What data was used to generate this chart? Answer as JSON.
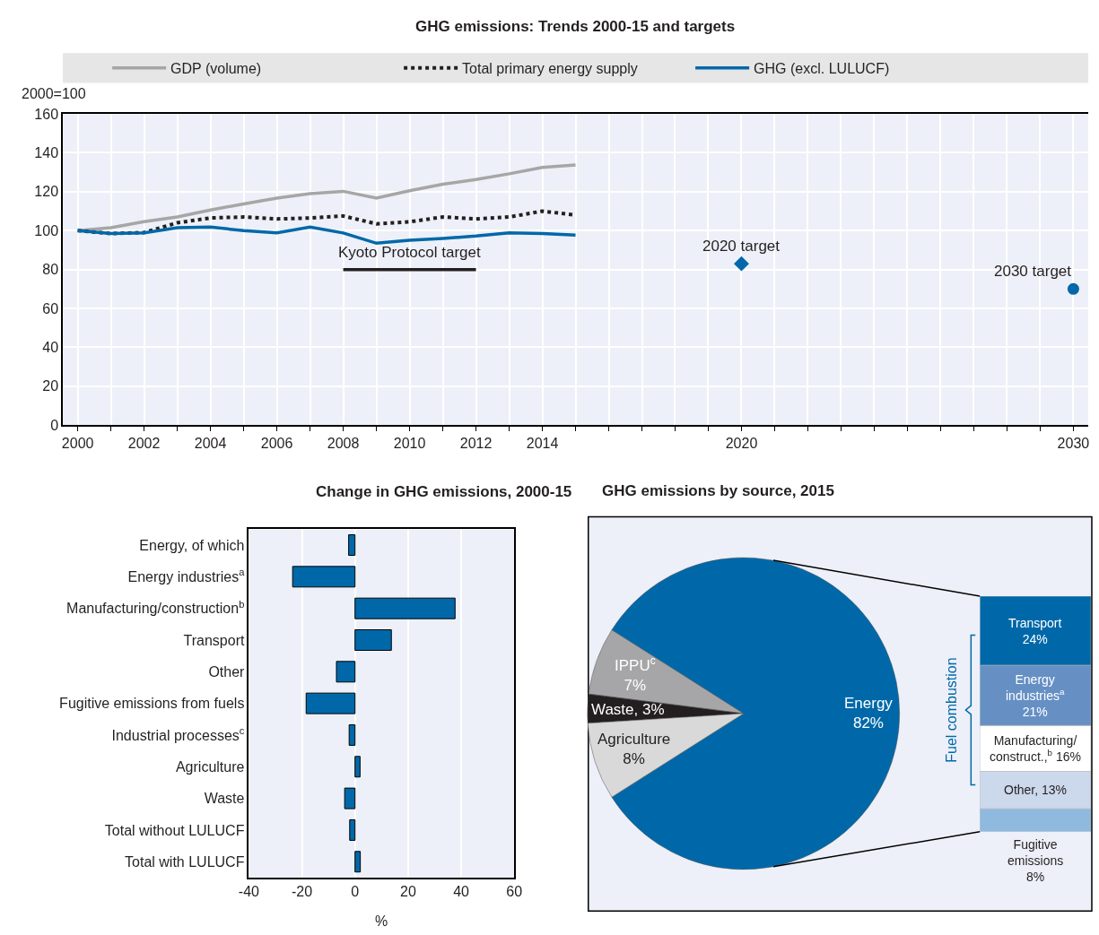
{
  "chart_data": [
    {
      "type": "line",
      "title": "GHG emissions: Trends 2000-15 and targets",
      "ylabel": "2000=100",
      "legend": "top",
      "grid": true,
      "marker": "none",
      "xlim": [
        1999.55,
        2030.45
      ],
      "ylim": [
        0,
        160
      ],
      "yticks": [
        0,
        20,
        40,
        60,
        80,
        100,
        120,
        140,
        160
      ],
      "xticks": [
        2000,
        {
          "value": 2001,
          "label": null
        },
        2002,
        {
          "value": 2003,
          "label": null
        },
        2004,
        {
          "value": 2005,
          "label": null
        },
        2006,
        {
          "value": 2007,
          "label": null
        },
        2008,
        {
          "value": 2009,
          "label": null
        },
        2010,
        {
          "value": 2011,
          "label": null
        },
        2012,
        {
          "value": 2013,
          "label": null
        },
        2014,
        {
          "value": 2015,
          "label": null
        },
        {
          "value": 2016,
          "label": null
        },
        {
          "value": 2017,
          "label": null
        },
        {
          "value": 2018,
          "label": null
        },
        {
          "value": 2019,
          "label": null
        },
        2020,
        {
          "value": 2021,
          "label": null
        },
        {
          "value": 2022,
          "label": null
        },
        {
          "value": 2023,
          "label": null
        },
        {
          "value": 2024,
          "label": null
        },
        {
          "value": 2025,
          "label": null
        },
        {
          "value": 2026,
          "label": null
        },
        {
          "value": 2027,
          "label": null
        },
        {
          "value": 2028,
          "label": null
        },
        {
          "value": 2029,
          "label": null
        },
        2030
      ],
      "x": [
        2000,
        2001,
        2002,
        2003,
        2004,
        2005,
        2006,
        2007,
        2008,
        2009,
        2010,
        2011,
        2012,
        2013,
        2014,
        2015
      ],
      "series": [
        {
          "name": "GDP (volume)",
          "color": "#a6a6a6",
          "line_style": "solid",
          "values": [
            100,
            101.5,
            104.6,
            107,
            110.6,
            113.7,
            116.7,
            119,
            120.2,
            116.7,
            120.5,
            123.8,
            126.3,
            129.2,
            132.5,
            133.8
          ]
        },
        {
          "name": "Total primary energy supply",
          "color": "#231f20",
          "line_style": "dotted",
          "values": [
            100,
            98.5,
            99,
            104,
            106.5,
            107,
            106,
            106.5,
            107.5,
            103.5,
            104.5,
            107,
            106,
            107,
            110,
            108
          ]
        },
        {
          "name": "GHG (excl. LULUCF)",
          "color": "#0068a9",
          "line_style": "solid",
          "values": [
            100,
            98.5,
            98.8,
            101.5,
            101.8,
            100,
            98.8,
            101.8,
            98.8,
            93.5,
            95,
            96,
            97.2,
            98.8,
            98.5,
            97.7
          ]
        },
        {
          "type": "line",
          "color": "#231f20",
          "line_style": "solid",
          "x": [
            2008,
            2012
          ],
          "values": [
            80,
            80
          ]
        },
        {
          "type": "scatter",
          "color": "#0068a9",
          "marker": "diamond",
          "x": [
            2020
          ],
          "values": [
            83
          ]
        },
        {
          "type": "scatter",
          "color": "#0068a9",
          "marker": "circle",
          "x": [
            2030
          ],
          "values": [
            70
          ]
        }
      ],
      "annotations": [
        {
          "text": "Kyoto Protocol target",
          "x": 2010,
          "y": 80
        },
        {
          "text": "2020 target",
          "x": 2020,
          "y": 83
        },
        {
          "text": "2030 target",
          "x": 2030,
          "y": 70
        }
      ]
    },
    {
      "type": "bar",
      "orientation": "horizontal",
      "title": "Change in GHG emissions, 2000-15",
      "xlabel": "%",
      "grid": "x",
      "xlim": [
        -40,
        60
      ],
      "xticks": [
        -40,
        -20,
        0,
        20,
        40,
        60
      ],
      "categories": [
        "Energy, of which",
        "Energy industries$^{a}$",
        "Manufacturing/construction$^{b}$",
        "Transport",
        "Other",
        "Fugitive emissions from fuels",
        "Industrial processes$^{c}$",
        "Agriculture",
        "Waste",
        "Total without LULUCF",
        "Total with LULUCF"
      ],
      "color": "#0068a9",
      "values": [
        -2.4,
        -23.5,
        37.7,
        13.7,
        -7,
        -18.4,
        -2.2,
        1.9,
        -3.9,
        -2,
        2
      ]
    },
    {
      "type": "pie",
      "title": "GHG emissions by source, 2015",
      "categories": [
        "Energy",
        "IPPU$^{c}$",
        "Waste",
        "Agriculture"
      ],
      "values": [
        82,
        7,
        3,
        8
      ],
      "colors": [
        "#0068a9",
        "#a6a6a8",
        "#231f20",
        "#d9d9d9"
      ],
      "value_labels": [
        "82%",
        "7%",
        "3%",
        "8%"
      ]
    },
    {
      "type": "bar",
      "stacked": true,
      "categories": [
        null
      ],
      "annotations": [
        "Fuel combustion"
      ],
      "series": [
        {
          "color": "#8fb9de",
          "values": [
            8
          ],
          "value_labels": [
            "Fugitive\nemissions\n8%"
          ]
        },
        {
          "color": "#ccd8ec",
          "values": [
            13
          ],
          "value_labels": [
            "Other, 13%"
          ]
        },
        {
          "color": "#ffffff",
          "values": [
            16
          ],
          "value_labels": [
            "Manufacturing/\nconstruct.,$^{b}$ 16%"
          ]
        },
        {
          "color": "#6690c4",
          "values": [
            21
          ],
          "value_labels": [
            "Energy\nindustries$^{a}$\n21%"
          ]
        },
        {
          "color": "#0068a9",
          "values": [
            24
          ],
          "value_labels": [
            "Transport\n24%"
          ]
        }
      ]
    }
  ]
}
